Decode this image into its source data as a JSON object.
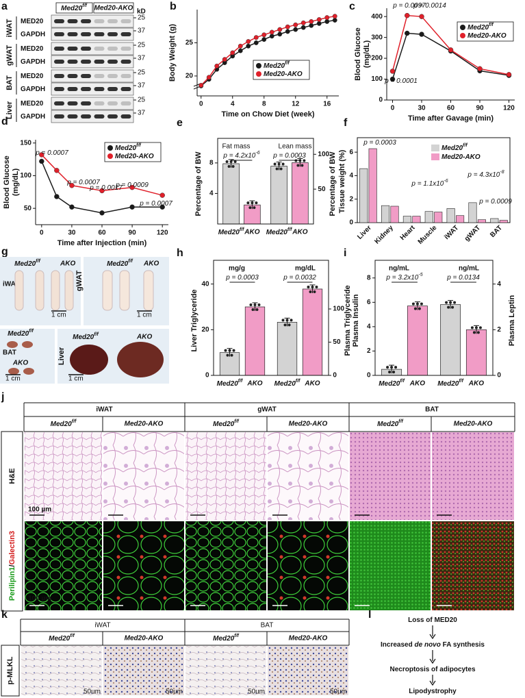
{
  "genotypes": {
    "ctrl": "Med20",
    "ctrl_sup": "f/f",
    "ako": "Med20-AKO",
    "ako_short": "AKO"
  },
  "colors": [
    "#d3d3d3",
    "#f19cc6"
  ],
  "line_colors": [
    "#1a1a1a",
    "#e0202a"
  ],
  "a": {
    "label": "a",
    "kd": "kD",
    "groups": [
      {
        "tissue": "iWAT",
        "rows": [
          {
            "name": "MED20",
            "marker": "25"
          },
          {
            "name": "GAPDH",
            "marker": "37"
          }
        ]
      },
      {
        "tissue": "gWAT",
        "rows": [
          {
            "name": "MED20",
            "marker": "25"
          },
          {
            "name": "GAPDH",
            "marker": "37"
          }
        ]
      },
      {
        "tissue": "BAT",
        "rows": [
          {
            "name": "MED20",
            "marker": "25"
          },
          {
            "name": "GAPDH",
            "marker": "37"
          }
        ]
      },
      {
        "tissue": "Liver",
        "rows": [
          {
            "name": "MED20",
            "marker": "25"
          },
          {
            "name": "GAPDH",
            "marker": "37"
          }
        ]
      }
    ]
  },
  "b": {
    "label": "b",
    "type": "line",
    "xlabel": "Time on Chow Diet  (week)",
    "ylabel": [
      "Body Weight (g)"
    ],
    "x": [
      0,
      1,
      2,
      3,
      4,
      5,
      6,
      7,
      8,
      9,
      10,
      11,
      12,
      13,
      14,
      15,
      16,
      17
    ],
    "xlim": [
      -0.5,
      17.5
    ],
    "xticks": [
      0,
      4,
      8,
      12,
      16
    ],
    "ylim": [
      17,
      30
    ],
    "yticks": [
      20,
      25
    ],
    "series": [
      {
        "name": "Med20",
        "name_sup": "f/f",
        "values": [
          18.5,
          19.5,
          21,
          22,
          23,
          23.8,
          24.5,
          25,
          25.5,
          26,
          26.3,
          26.7,
          27,
          27.3,
          27.6,
          27.9,
          28.2,
          28.4
        ]
      },
      {
        "name": "Med20-AKO",
        "values": [
          18.6,
          19.8,
          21.5,
          22.5,
          23.5,
          24.5,
          25.2,
          25.8,
          26.2,
          26.6,
          27,
          27.4,
          27.7,
          28,
          28.2,
          28.5,
          28.8,
          29
        ]
      }
    ]
  },
  "c": {
    "label": "c",
    "type": "line",
    "xlabel": "Time after Gavage (min)",
    "ylabel": [
      "Blood Glucose",
      "(mg/dL)"
    ],
    "x": [
      0,
      15,
      30,
      60,
      90,
      120
    ],
    "xlim": [
      -6,
      126
    ],
    "xticks": [
      0,
      30,
      60,
      90,
      120
    ],
    "ylim": [
      0,
      440
    ],
    "yticks": [
      0,
      100,
      200,
      300,
      400
    ],
    "annotations": [
      "p = 0.0001",
      "p = 0.0097",
      "p = 0.0014"
    ],
    "series": [
      {
        "name": "Med20",
        "name_sup": "f/f",
        "values": [
          100,
          320,
          315,
          235,
          140,
          118
        ]
      },
      {
        "name": "Med20-AKO",
        "values": [
          138,
          405,
          400,
          240,
          150,
          122
        ]
      }
    ]
  },
  "d": {
    "label": "d",
    "type": "line",
    "xlabel": "Time after Injection (min)",
    "ylabel": [
      "Blood Glucose",
      "(mg/dL)"
    ],
    "x": [
      0,
      15,
      30,
      60,
      90,
      120
    ],
    "xlim": [
      -6,
      126
    ],
    "xticks": [
      0,
      30,
      60,
      90,
      120
    ],
    "ylim": [
      25,
      155
    ],
    "yticks": [
      50,
      100,
      150
    ],
    "annotations": [
      "p = 0.0007",
      "p = 0.0007",
      "p = 0.0017",
      "p = 0.0009",
      "p = 0.0007"
    ],
    "series": [
      {
        "name": "Med20",
        "name_sup": "f/f",
        "values": [
          122,
          68,
          52,
          43,
          52,
          52
        ]
      },
      {
        "name": "Med20-AKO",
        "values": [
          132,
          108,
          85,
          77,
          82,
          70
        ]
      }
    ]
  },
  "e": {
    "label": "e",
    "type": "bar",
    "ylabel": "Percentage of BW",
    "ylabel2": "Percentage of BW",
    "panels": [
      {
        "title": "Fat mass",
        "annotation": "p = 4.2x10",
        "annotation_exp": "-6",
        "values": [
          7.9,
          2.5
        ],
        "ylim": [
          0,
          10.5
        ],
        "yticks": [
          4,
          8
        ]
      },
      {
        "title": "Lean mass",
        "annotation": "p = 0.0003",
        "values": [
          83,
          88
        ],
        "ylim": [
          0,
          115
        ],
        "yticks": [
          50,
          100
        ]
      }
    ]
  },
  "f": {
    "label": "f",
    "type": "bar",
    "ylabel": "Tissue weight (%)",
    "ylim": [
      0,
      7
    ],
    "yticks": [
      0,
      2,
      4,
      6
    ],
    "categories": [
      "Liver",
      "Kidney",
      "Heart",
      "Muscle",
      "iWAT",
      "gWAT",
      "BAT"
    ],
    "series": [
      {
        "name": "Med20",
        "name_sup": "f/f",
        "values": [
          4.6,
          1.45,
          0.55,
          0.95,
          1.2,
          1.7,
          0.35
        ]
      },
      {
        "name": "Med20-AKO",
        "values": [
          6.3,
          1.4,
          0.55,
          0.9,
          0.6,
          0.25,
          0.2
        ]
      }
    ],
    "annotations": [
      {
        "text": "p = 0.0003"
      },
      {
        "text": "p = 1.1x10",
        "exp": "-6"
      },
      {
        "text": "p = 4.3x10",
        "exp": "-8"
      },
      {
        "text": "p = 0.0009"
      }
    ]
  },
  "g": {
    "label": "g",
    "tissues": [
      "iWAT",
      "gWAT",
      "BAT",
      "Liver"
    ],
    "scale": "1 cm"
  },
  "h": {
    "label": "h",
    "type": "bar",
    "ylabel": "Liver Triglyceride",
    "ylabel2": "Plasma Triglyceride",
    "panels": [
      {
        "title": "mg/g",
        "annotation": "p = 0.0003",
        "values": [
          10,
          30
        ],
        "ylim": [
          0,
          48
        ],
        "yticks": [
          0,
          20,
          40
        ]
      },
      {
        "title": "mg/dL",
        "annotation": "p = 0.0032",
        "values": [
          80,
          130
        ],
        "ylim": [
          0,
          165
        ],
        "yticks": [
          0,
          50,
          100
        ]
      }
    ]
  },
  "i": {
    "label": "i",
    "type": "bar",
    "ylabel": "Plasma Insulin",
    "ylabel2": "Plasma Leptin",
    "panels": [
      {
        "title": "ng/mL",
        "annotation": "p = 3.2x10",
        "annotation_exp": "-5",
        "values": [
          0.5,
          5.7
        ],
        "ylim": [
          0,
          9
        ],
        "yticks": [
          0,
          2,
          4,
          6,
          8
        ]
      },
      {
        "title": "ng/mL",
        "annotation": "p = 0.0134",
        "values": [
          3.1,
          2.0
        ],
        "ylim": [
          0,
          4.8
        ],
        "yticks": [
          0,
          2,
          4
        ]
      }
    ]
  },
  "j": {
    "label": "j",
    "tissues": [
      "iWAT",
      "gWAT",
      "BAT"
    ],
    "stain1": "H&E",
    "stain2": [
      "Perilipin1",
      "/",
      "Galectin3"
    ],
    "scale": "100 µm"
  },
  "k": {
    "label": "k",
    "tissues": [
      "iWAT",
      "BAT"
    ],
    "stain": "p-MLKL",
    "scale": "50um"
  },
  "l": {
    "label": "l",
    "steps": [
      [
        "Loss of MED20"
      ],
      [
        "Increased ",
        "de novo",
        " FA synthesis"
      ],
      [
        "Necroptosis of adipocytes"
      ],
      [
        "Lipodystrophy"
      ]
    ]
  }
}
